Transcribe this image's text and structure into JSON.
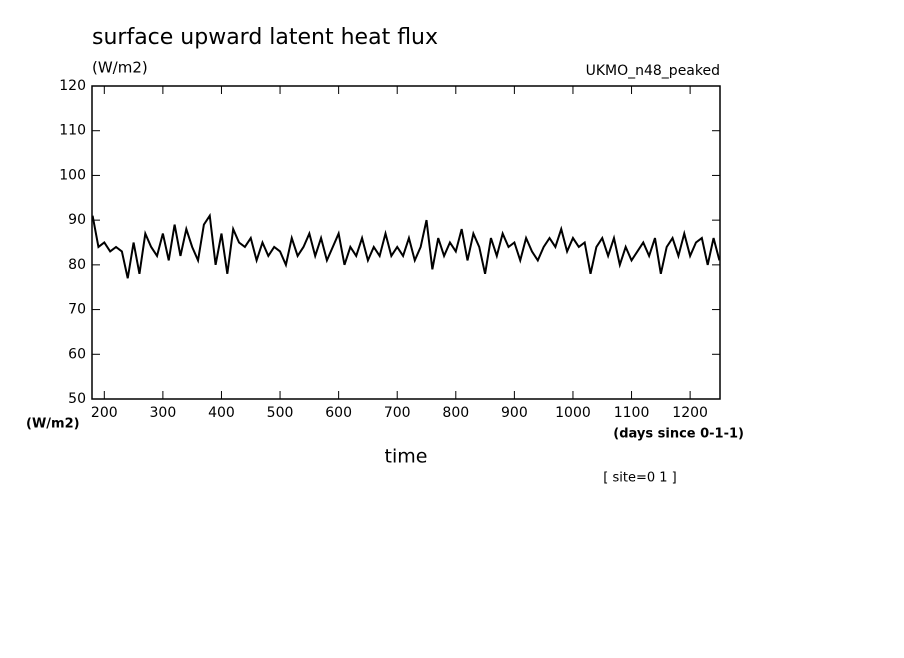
{
  "chart_data": {
    "type": "line",
    "title": "surface upward latent heat flux",
    "units_label": "(W/m2)",
    "dataset_label": "UKMO_n48_peaked",
    "y_axis_label": "(W/m2)",
    "x_axis_units": "(days since 0-1-1)",
    "x_axis_label": "time",
    "site_label": "[ site=0 1 ]",
    "xlim": [
      179,
      1251
    ],
    "ylim": [
      50,
      120
    ],
    "xticks": [
      200,
      300,
      400,
      500,
      600,
      700,
      800,
      900,
      1000,
      1100,
      1200
    ],
    "yticks": [
      50,
      60,
      70,
      80,
      90,
      100,
      110,
      120
    ],
    "x": [
      180,
      190,
      200,
      210,
      220,
      230,
      240,
      250,
      260,
      270,
      280,
      290,
      300,
      310,
      320,
      330,
      340,
      350,
      360,
      370,
      380,
      390,
      400,
      410,
      420,
      430,
      440,
      450,
      460,
      470,
      480,
      490,
      500,
      510,
      520,
      530,
      540,
      550,
      560,
      570,
      580,
      590,
      600,
      610,
      620,
      630,
      640,
      650,
      660,
      670,
      680,
      690,
      700,
      710,
      720,
      730,
      740,
      750,
      760,
      770,
      780,
      790,
      800,
      810,
      820,
      830,
      840,
      850,
      860,
      870,
      880,
      890,
      900,
      910,
      920,
      930,
      940,
      950,
      960,
      970,
      980,
      990,
      1000,
      1010,
      1020,
      1030,
      1040,
      1050,
      1060,
      1070,
      1080,
      1090,
      1100,
      1110,
      1120,
      1130,
      1140,
      1150,
      1160,
      1170,
      1180,
      1190,
      1200,
      1210,
      1220,
      1230,
      1240,
      1250
    ],
    "series": [
      {
        "color": "#000000",
        "values": [
          91,
          84,
          85,
          83,
          84,
          83,
          77,
          85,
          78,
          87,
          84,
          82,
          87,
          81,
          89,
          82,
          88,
          84,
          81,
          89,
          91,
          80,
          87,
          78,
          88,
          85,
          84,
          86,
          81,
          85,
          82,
          84,
          83,
          80,
          86,
          82,
          84,
          87,
          82,
          86,
          81,
          84,
          87,
          80,
          84,
          82,
          86,
          81,
          84,
          82,
          87,
          82,
          84,
          82,
          86,
          81,
          84,
          90,
          79,
          86,
          82,
          85,
          83,
          88,
          81,
          87,
          84,
          78,
          86,
          82,
          87,
          84,
          85,
          81,
          86,
          83,
          81,
          84,
          86,
          84,
          88,
          83,
          86,
          84,
          85,
          78,
          84,
          86,
          82,
          86,
          80,
          84,
          81,
          83,
          85,
          82,
          86,
          78,
          84,
          86,
          82,
          87,
          82,
          85,
          86,
          80,
          86,
          81
        ]
      }
    ]
  }
}
